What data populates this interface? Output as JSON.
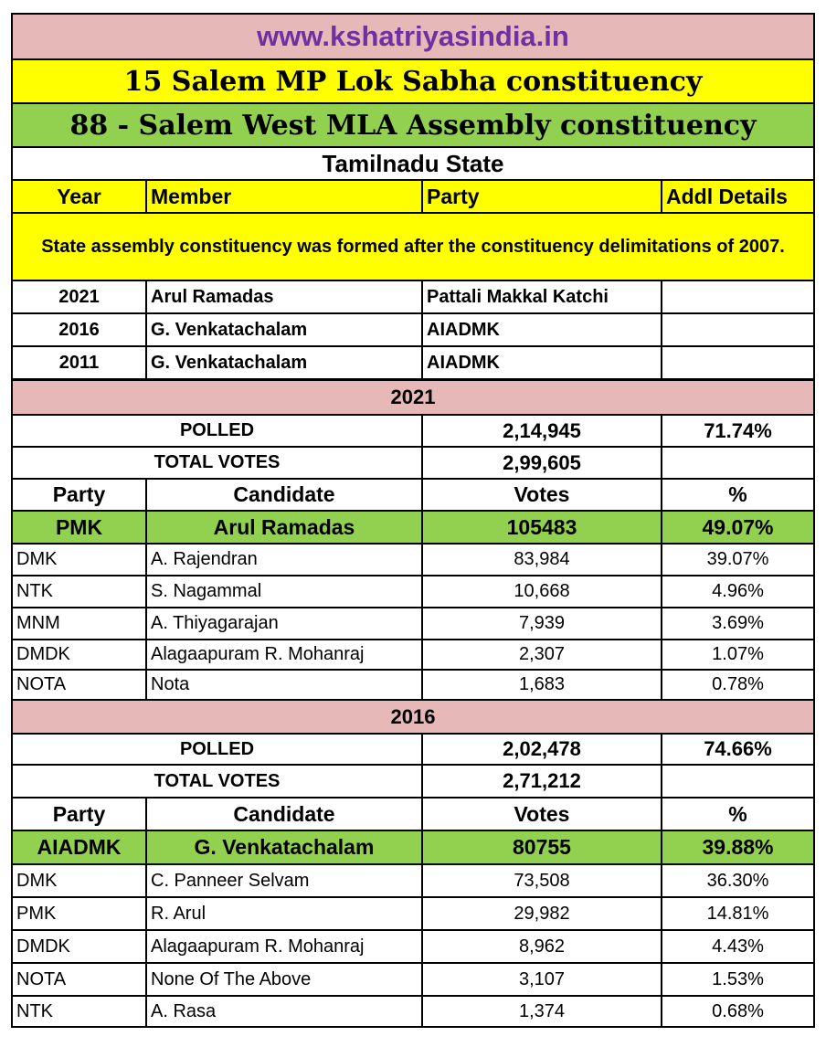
{
  "header": {
    "site": "www.kshatriyasindia.in",
    "lok_sabha": "15 Salem MP Lok Sabha constituency",
    "assembly": "88 - Salem West MLA Assembly constituency",
    "state": "Tamilnadu State"
  },
  "members_table": {
    "columns": [
      "Year",
      "Member",
      "Party",
      "Addl Details"
    ],
    "note": "State assembly constituency was formed after the constituency delimitations of 2007.",
    "rows": [
      {
        "year": "2021",
        "member": "Arul Ramadas",
        "party": "Pattali Makkal Katchi",
        "addl": ""
      },
      {
        "year": "2016",
        "member": "G. Venkatachalam",
        "party": "AIADMK",
        "addl": ""
      },
      {
        "year": "2011",
        "member": "G. Venkatachalam",
        "party": "AIADMK",
        "addl": ""
      }
    ]
  },
  "elections": [
    {
      "year": "2021",
      "polled_label": "POLLED",
      "polled": "2,14,945",
      "polled_pct": "71.74%",
      "total_label": "TOTAL VOTES",
      "total": "2,99,605",
      "columns": [
        "Party",
        "Candidate",
        "Votes",
        "%"
      ],
      "winner": {
        "party": "PMK",
        "candidate": "Arul Ramadas",
        "votes": "105483",
        "pct": "49.07%"
      },
      "rows": [
        {
          "party": "DMK",
          "candidate": "A. Rajendran",
          "votes": "83,984",
          "pct": "39.07%"
        },
        {
          "party": "NTK",
          "candidate": "S. Nagammal",
          "votes": "10,668",
          "pct": "4.96%"
        },
        {
          "party": "MNM",
          "candidate": "A. Thiyagarajan",
          "votes": "7,939",
          "pct": "3.69%"
        },
        {
          "party": "DMDK",
          "candidate": "Alagaapuram R. Mohanraj",
          "votes": "2,307",
          "pct": "1.07%"
        },
        {
          "party": "NOTA",
          "candidate": "Nota",
          "votes": "1,683",
          "pct": "0.78%"
        }
      ]
    },
    {
      "year": "2016",
      "polled_label": "POLLED",
      "polled": "2,02,478",
      "polled_pct": "74.66%",
      "total_label": "TOTAL VOTES",
      "total": "2,71,212",
      "columns": [
        "Party",
        "Candidate",
        "Votes",
        "%"
      ],
      "winner": {
        "party": "AIADMK",
        "candidate": "G. Venkatachalam",
        "votes": "80755",
        "pct": "39.88%"
      },
      "rows": [
        {
          "party": "DMK",
          "candidate": "C. Panneer Selvam",
          "votes": "73,508",
          "pct": "36.30%"
        },
        {
          "party": "PMK",
          "candidate": "R. Arul",
          "votes": "29,982",
          "pct": "14.81%"
        },
        {
          "party": "DMDK",
          "candidate": "Alagaapuram R. Mohanraj",
          "votes": "8,962",
          "pct": "4.43%"
        },
        {
          "party": "NOTA",
          "candidate": "None Of The Above",
          "votes": "3,107",
          "pct": "1.53%"
        },
        {
          "party": "NTK",
          "candidate": "A. Rasa",
          "votes": "1,374",
          "pct": "0.68%"
        }
      ]
    }
  ]
}
